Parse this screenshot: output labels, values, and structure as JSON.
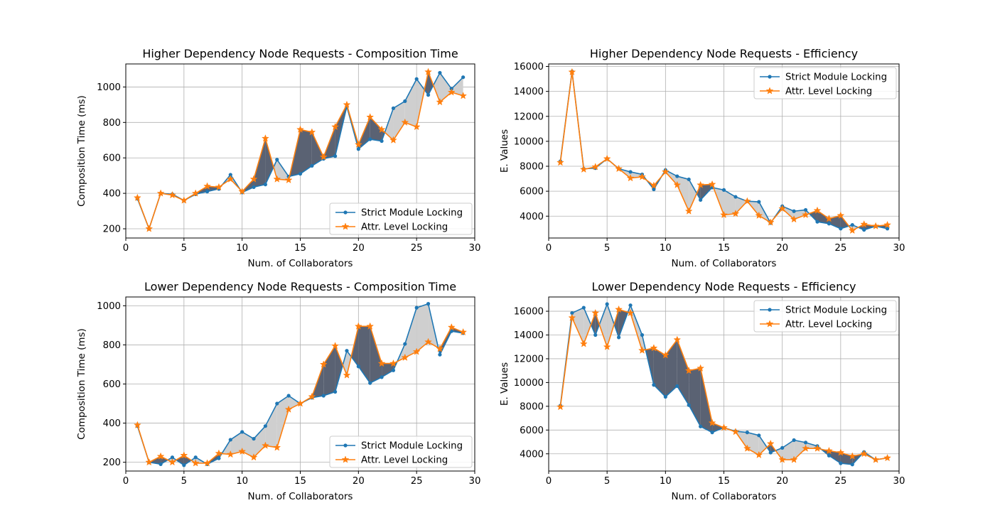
{
  "colors": {
    "strict": "#1f77b4",
    "attr": "#ff7f0e",
    "fill_attr_higher": "#57606f",
    "fill_strict_higher": "#c9c9c9",
    "grid": "#b0b0b0"
  },
  "chart_data": [
    {
      "id": "higher-composition",
      "type": "line",
      "title": "Higher Dependency Node Requests - Composition Time",
      "xlabel": "Num. of Collaborators",
      "ylabel": "Composition Time (ms)",
      "xlim": [
        0,
        30
      ],
      "ylim": [
        148,
        1130
      ],
      "xticks": [
        0,
        5,
        10,
        15,
        20,
        25,
        30
      ],
      "yticks": [
        200,
        400,
        600,
        800,
        1000
      ],
      "legend_position": "lower right",
      "grid": true,
      "x": [
        1,
        2,
        3,
        4,
        5,
        6,
        7,
        8,
        9,
        10,
        11,
        12,
        13,
        14,
        15,
        16,
        17,
        18,
        19,
        20,
        21,
        22,
        23,
        24,
        25,
        26,
        27,
        28,
        29
      ],
      "series": [
        {
          "name": "Strict Module Locking",
          "marker": "dot",
          "values": [
            370,
            200,
            400,
            395,
            360,
            395,
            410,
            425,
            505,
            405,
            435,
            450,
            590,
            495,
            510,
            555,
            595,
            610,
            890,
            650,
            705,
            695,
            880,
            920,
            1045,
            955,
            1080,
            990,
            1055
          ]
        },
        {
          "name": "Attr. Level Locking",
          "marker": "star",
          "values": [
            375,
            200,
            400,
            390,
            360,
            400,
            440,
            435,
            480,
            410,
            480,
            710,
            480,
            475,
            760,
            745,
            605,
            775,
            900,
            675,
            830,
            760,
            700,
            800,
            775,
            1085,
            915,
            970,
            950
          ]
        }
      ]
    },
    {
      "id": "higher-efficiency",
      "type": "line",
      "title": "Higher Dependency Node Requests - Efficiency",
      "xlabel": "Num. of Collaborators",
      "ylabel": "E. Values",
      "xlim": [
        0,
        30
      ],
      "ylim": [
        2250,
        16200
      ],
      "xticks": [
        0,
        5,
        10,
        15,
        20,
        25,
        30
      ],
      "yticks": [
        4000,
        6000,
        8000,
        10000,
        12000,
        14000,
        16000
      ],
      "legend_position": "upper right",
      "grid": true,
      "x": [
        1,
        2,
        3,
        4,
        5,
        6,
        7,
        8,
        9,
        10,
        11,
        12,
        13,
        14,
        15,
        16,
        17,
        18,
        19,
        20,
        21,
        22,
        23,
        24,
        25,
        26,
        27,
        28,
        29
      ],
      "series": [
        {
          "name": "Strict Module Locking",
          "marker": "dot",
          "values": [
            8400,
            15600,
            7800,
            7850,
            8600,
            7800,
            7550,
            7350,
            6150,
            7700,
            7200,
            6950,
            5300,
            6300,
            6100,
            5550,
            5200,
            5150,
            3450,
            4800,
            4400,
            4500,
            3550,
            3400,
            3000,
            3300,
            2900,
            3200,
            3000
          ]
        },
        {
          "name": "Attr. Level Locking",
          "marker": "star",
          "values": [
            8300,
            15550,
            7750,
            7950,
            8600,
            7800,
            7050,
            7150,
            6450,
            7550,
            6500,
            4400,
            6500,
            6550,
            4100,
            4200,
            5200,
            4050,
            3500,
            4600,
            3750,
            4100,
            4450,
            3800,
            4050,
            2850,
            3350,
            3200,
            3300
          ]
        }
      ]
    },
    {
      "id": "lower-composition",
      "type": "line",
      "title": "Lower Dependency Node Requests - Composition Time",
      "xlabel": "Num. of Collaborators",
      "ylabel": "Composition Time (ms)",
      "xlim": [
        0,
        30
      ],
      "ylim": [
        155,
        1045
      ],
      "xticks": [
        0,
        5,
        10,
        15,
        20,
        25,
        30
      ],
      "yticks": [
        200,
        400,
        600,
        800,
        1000
      ],
      "legend_position": "lower right",
      "grid": true,
      "x": [
        1,
        2,
        3,
        4,
        5,
        6,
        7,
        8,
        9,
        10,
        11,
        12,
        13,
        14,
        15,
        16,
        17,
        18,
        19,
        20,
        21,
        22,
        23,
        24,
        25,
        26,
        27,
        28,
        29
      ],
      "series": [
        {
          "name": "Strict Module Locking",
          "marker": "dot",
          "values": [
            385,
            200,
            190,
            225,
            185,
            225,
            190,
            220,
            315,
            355,
            320,
            385,
            500,
            540,
            500,
            530,
            540,
            560,
            770,
            690,
            605,
            635,
            670,
            805,
            990,
            1010,
            750,
            870,
            860
          ]
        },
        {
          "name": "Attr. Level Locking",
          "marker": "star",
          "values": [
            390,
            200,
            230,
            200,
            235,
            195,
            195,
            245,
            240,
            255,
            225,
            285,
            275,
            470,
            500,
            535,
            700,
            795,
            645,
            895,
            895,
            705,
            705,
            735,
            765,
            815,
            780,
            890,
            865
          ]
        }
      ]
    },
    {
      "id": "lower-efficiency",
      "type": "line",
      "title": "Lower Dependency Node Requests - Efficiency",
      "xlabel": "Num. of Collaborators",
      "ylabel": "E. Values",
      "xlim": [
        0,
        30
      ],
      "ylim": [
        2550,
        17200
      ],
      "xticks": [
        0,
        5,
        10,
        15,
        20,
        25,
        30
      ],
      "yticks": [
        4000,
        6000,
        8000,
        10000,
        12000,
        14000,
        16000
      ],
      "legend_position": "upper right",
      "grid": true,
      "x": [
        1,
        2,
        3,
        4,
        5,
        6,
        7,
        8,
        9,
        10,
        11,
        12,
        13,
        14,
        15,
        16,
        17,
        18,
        19,
        20,
        21,
        22,
        23,
        24,
        25,
        26,
        27,
        28,
        29
      ],
      "series": [
        {
          "name": "Strict Module Locking",
          "marker": "dot",
          "values": [
            8050,
            15850,
            16300,
            14000,
            16600,
            13800,
            16500,
            14000,
            9800,
            8800,
            9700,
            8100,
            6300,
            5800,
            6200,
            5900,
            5800,
            5550,
            4100,
            4500,
            5150,
            4950,
            4650,
            3850,
            3200,
            3100,
            4150,
            3500,
            3650
          ]
        },
        {
          "name": "Attr. Level Locking",
          "marker": "star",
          "values": [
            7950,
            15450,
            13250,
            15850,
            13000,
            16150,
            15850,
            12700,
            12900,
            12300,
            13600,
            11000,
            11200,
            6600,
            6200,
            5850,
            4450,
            3900,
            4850,
            3500,
            3500,
            4450,
            4450,
            4250,
            4100,
            3800,
            4000,
            3500,
            3650
          ]
        }
      ]
    }
  ]
}
